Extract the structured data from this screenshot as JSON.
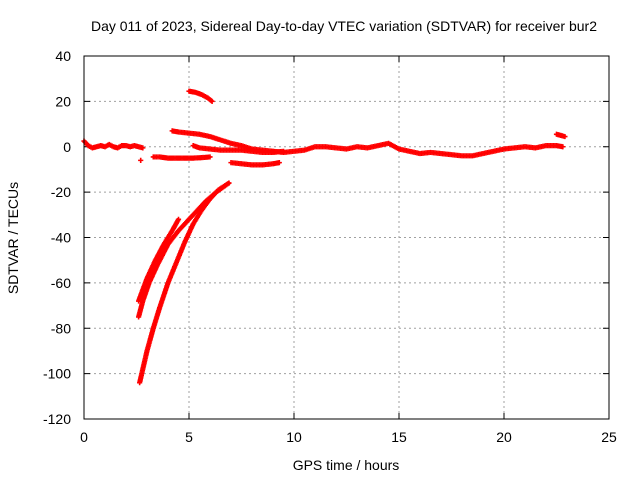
{
  "chart_data": {
    "type": "scatter",
    "title": "Day 011 of 2023, Sidereal Day-to-day VTEC variation (SDTVAR) for receiver bur2",
    "xlabel": "GPS time / hours",
    "ylabel": "SDTVAR / TECUs",
    "xlim": [
      0,
      25
    ],
    "ylim": [
      -120,
      40
    ],
    "x_ticks": [
      0,
      5,
      10,
      15,
      20,
      25
    ],
    "y_ticks": [
      -120,
      -100,
      -80,
      -60,
      -40,
      -20,
      0,
      20,
      40
    ],
    "grid": true,
    "marker": "plus",
    "color": "#ff0000",
    "series": [
      {
        "name": "main-track-early",
        "x": [
          0.0,
          0.2,
          0.4,
          0.6,
          0.8,
          1.0,
          1.2,
          1.4,
          1.6,
          1.8,
          2.0,
          2.2,
          2.4,
          2.6,
          2.8
        ],
        "y": [
          2.5,
          0.5,
          -0.5,
          0,
          0.5,
          0,
          1,
          0,
          -0.5,
          0.5,
          0.5,
          0,
          0.5,
          0,
          -0.5
        ]
      },
      {
        "name": "main-track-late",
        "x": [
          9.0,
          9.5,
          10.0,
          10.5,
          11.0,
          11.5,
          12.0,
          12.5,
          13.0,
          13.5,
          14.0,
          14.5,
          15.0,
          15.5,
          16.0,
          16.5,
          17.0,
          17.5,
          18.0,
          18.5,
          19.0,
          19.5,
          20.0,
          20.5,
          21.0,
          21.5,
          22.0,
          22.5,
          22.8
        ],
        "y": [
          -2,
          -2.5,
          -2,
          -1.5,
          0,
          0,
          -0.5,
          -1,
          0,
          -0.5,
          0.5,
          1.5,
          -1,
          -2,
          -3,
          -2.5,
          -3,
          -3.5,
          -4,
          -4,
          -3,
          -2,
          -1,
          -0.5,
          0,
          -0.5,
          0.5,
          0.5,
          0
        ]
      },
      {
        "name": "mid-track-a",
        "x": [
          4.2,
          4.5,
          5.0,
          5.5,
          6.0,
          6.5,
          7.0,
          7.5,
          8.0,
          8.5,
          9.0
        ],
        "y": [
          7,
          6.5,
          6,
          5.5,
          4.5,
          3,
          1.5,
          0.5,
          -1,
          -1.5,
          -2
        ]
      },
      {
        "name": "mid-track-b",
        "x": [
          5.2,
          5.5,
          6.0,
          6.5,
          7.0,
          7.5,
          8.0,
          8.5,
          9.0,
          9.5
        ],
        "y": [
          0.5,
          -0.5,
          -1,
          -1.5,
          -1.5,
          -1.5,
          -2,
          -2.5,
          -2.5,
          -2
        ]
      },
      {
        "name": "negative-offset-track",
        "x": [
          3.3,
          3.6,
          4.0,
          4.4,
          4.8,
          5.2,
          5.6,
          6.0
        ],
        "y": [
          -4.5,
          -4.5,
          -5,
          -5,
          -5,
          -5,
          -4.8,
          -4.5
        ]
      },
      {
        "name": "dip-track",
        "x": [
          7.0,
          7.5,
          8.0,
          8.5,
          9.0,
          9.3
        ],
        "y": [
          -7,
          -7.5,
          -8,
          -8,
          -7.5,
          -7
        ]
      },
      {
        "name": "high-arc",
        "x": [
          5.0,
          5.3,
          5.6,
          5.9,
          6.1
        ],
        "y": [
          24.5,
          24,
          23,
          21.5,
          20
        ]
      },
      {
        "name": "end-arc",
        "x": [
          22.5,
          22.7,
          22.9
        ],
        "y": [
          5.5,
          5,
          4.5
        ]
      },
      {
        "name": "recovery-curve-1",
        "x": [
          2.6,
          2.8,
          3.1,
          3.5,
          4.0,
          4.5,
          4.9,
          5.3,
          5.8,
          6.3,
          6.9
        ],
        "y": [
          -75,
          -68,
          -60,
          -52,
          -43,
          -37,
          -33,
          -29,
          -24,
          -20,
          -16
        ]
      },
      {
        "name": "recovery-curve-2",
        "x": [
          2.6,
          2.8,
          3.0,
          3.4,
          3.8,
          4.2,
          4.5
        ],
        "y": [
          -68,
          -63,
          -58,
          -50,
          -43,
          -37,
          -32
        ]
      },
      {
        "name": "recovery-curve-3",
        "x": [
          2.65,
          2.8,
          3.0,
          3.3,
          3.6,
          4.0,
          4.4,
          4.8,
          5.2,
          5.6,
          6.0,
          6.4,
          6.9
        ],
        "y": [
          -104,
          -98,
          -90,
          -80,
          -71,
          -60,
          -51,
          -42,
          -34,
          -28,
          -23,
          -19,
          -16
        ]
      },
      {
        "name": "isolated-point",
        "x": [
          2.7
        ],
        "y": [
          -6
        ]
      }
    ]
  }
}
